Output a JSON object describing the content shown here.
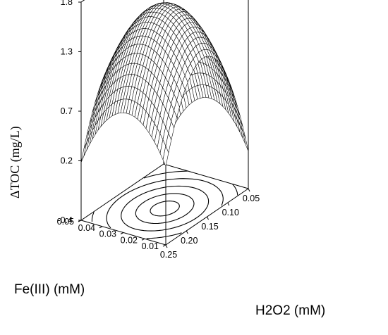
{
  "chart_data": {
    "type": "surface",
    "zlabel": "ΔTOC (mg/L)",
    "ylabel": "Fe(III) (mM)",
    "xlabel": "H2O2 (mM)",
    "z_ticks": [
      "1.8",
      "1.3",
      "0.7",
      "0.2",
      "-0.4"
    ],
    "fe_ticks": [
      "0.05",
      "0.04",
      "0.03",
      "0.02",
      "0.01"
    ],
    "h2o2_ticks": [
      "0.05",
      "0.10",
      "0.15",
      "0.20",
      "0.25"
    ],
    "zlim": [
      -0.4,
      1.8
    ],
    "fe_range": [
      0.01,
      0.05
    ],
    "h2o2_range": [
      0.05,
      0.25
    ],
    "surface": {
      "peak_z": 1.65,
      "peak_h2o2": 0.16,
      "peak_fe": 0.028,
      "contour_count": 5
    },
    "grid": false
  }
}
